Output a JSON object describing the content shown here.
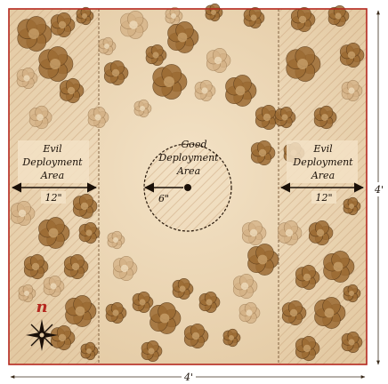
{
  "deployment": {
    "evil_left": {
      "line1": "Evil",
      "line2": "Deployment",
      "line3": "Area",
      "distance": "12\""
    },
    "good_center": {
      "line1": "Good",
      "line2": "Deployment",
      "line3": "Area",
      "radius": "6\""
    },
    "evil_right": {
      "line1": "Evil",
      "line2": "Deployment",
      "line3": "Area",
      "distance": "12\""
    }
  },
  "dimensions": {
    "width": "4'",
    "height": "4'"
  },
  "compass": {
    "north_label": "n"
  },
  "colors": {
    "table": "#ead4b2",
    "border": "#b5281f",
    "hatch": "#c9a57c",
    "tree_dark": "#9c6b33",
    "tree_light": "#d4b185"
  }
}
